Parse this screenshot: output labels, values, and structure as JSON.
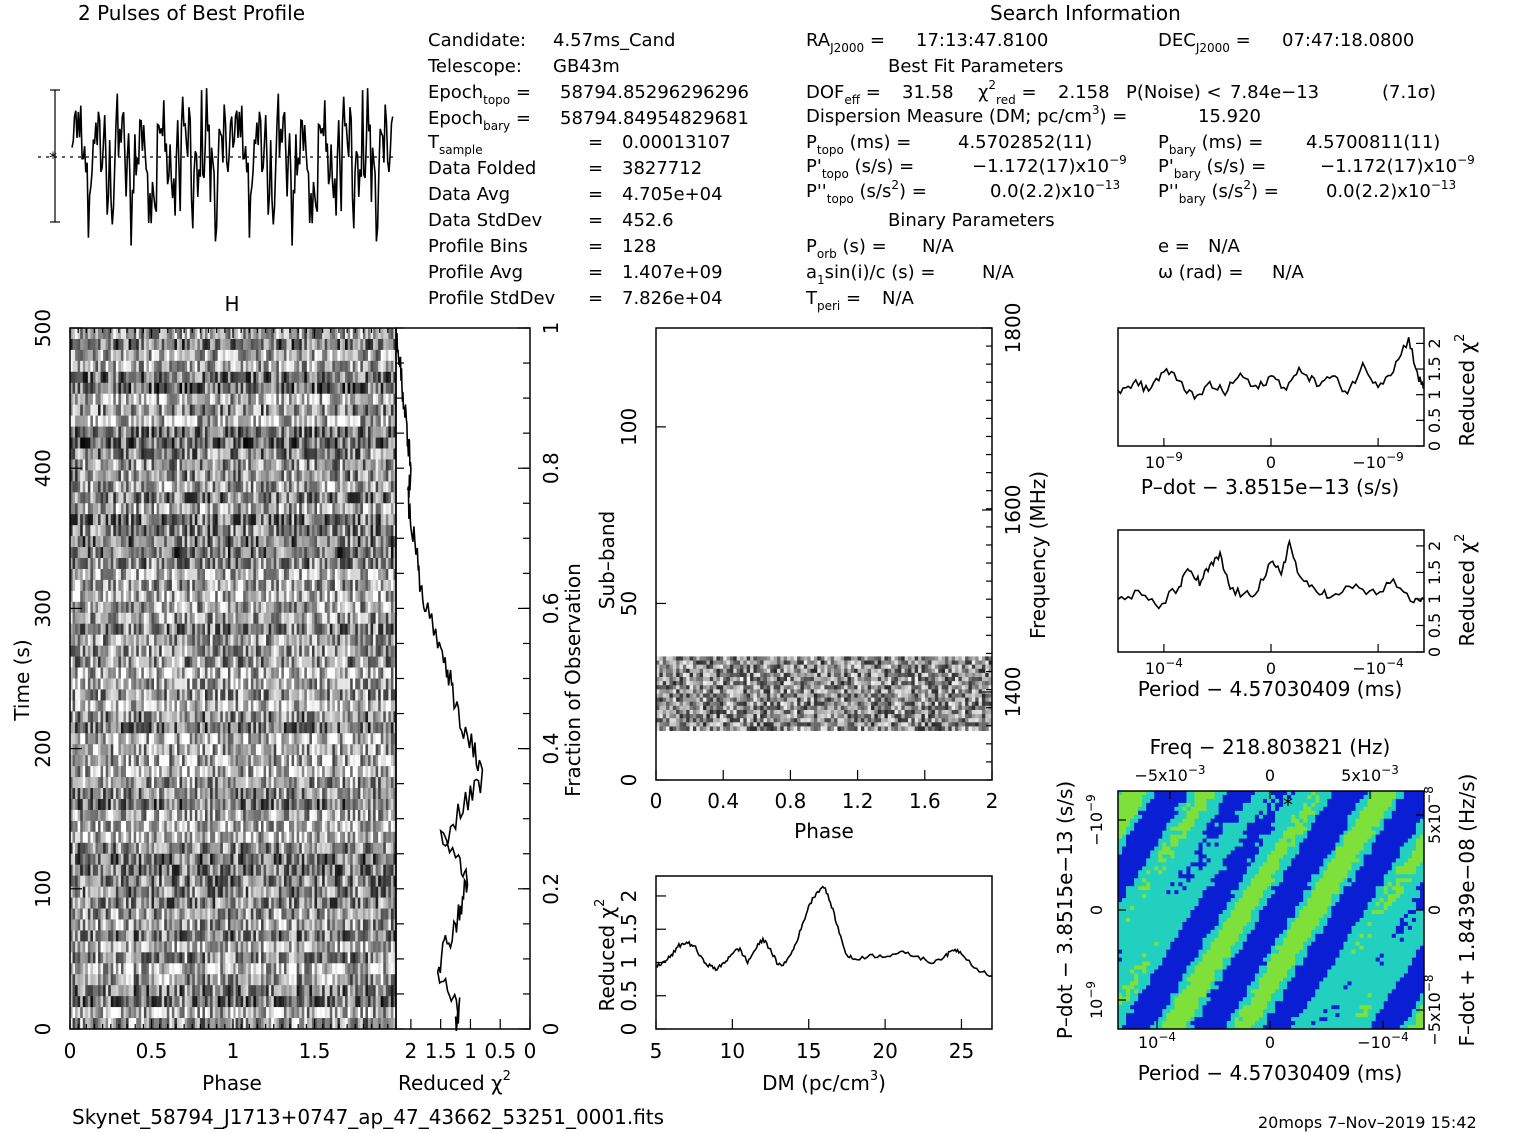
{
  "header": {
    "profile_title": "2 Pulses of Best Profile",
    "search_title": "Search Information",
    "best_fit_title": "Best Fit Parameters",
    "binary_title": "Binary Parameters"
  },
  "candidate_info": {
    "candidate": "4.57ms_Cand",
    "telescope": "GB43m",
    "epoch_topo": "58794.85296296296",
    "epoch_bary": "58794.84954829681",
    "t_sample": "0.00013107",
    "data_folded": "3827712",
    "data_avg": "4.705e+04",
    "data_stddev": "452.6",
    "profile_bins": "128",
    "profile_avg": "1.407e+09",
    "profile_stddev": "7.826e+04"
  },
  "search_info": {
    "ra": "17:13:47.8100",
    "dec": "07:47:18.0800",
    "dof_eff": "31.58",
    "chi2_red": "2.158",
    "p_noise": "7.84e−13",
    "sigma": "(7.1σ)",
    "dm": "15.920",
    "p_topo": "4.5702852(11)",
    "p_bary": "4.5700811(11)",
    "pd_topo_mant": "−1.172(17)x10",
    "pd_topo_exp": "−9",
    "pd_bary_mant": "−1.172(17)x10",
    "pd_bary_exp": "−9",
    "pdd_topo_mant": "0.0(2.2)x10",
    "pdd_topo_exp": "−13",
    "pdd_bary_mant": "0.0(2.2)x10",
    "pdd_bary_exp": "−13",
    "p_orb": "N/A",
    "e": "N/A",
    "asini": "N/A",
    "omega": "N/A",
    "t_peri": "N/A"
  },
  "footer": {
    "filename": "Skynet_58794_J1713+0747_ap_47_43662_53251_0001.fits",
    "user_date": "20mops  7–Nov–2019 15:42"
  },
  "colors": {
    "line": "#000000",
    "heatmap_low": "#0a1fd4",
    "heatmap_mid": "#22d0c0",
    "heatmap_high": "#7fe03a"
  },
  "chart_data": [
    {
      "id": "profile",
      "type": "line",
      "title": "2 Pulses of Best Profile",
      "x_range": [
        0,
        2
      ],
      "pulses": 2,
      "bins_per_pulse": 128,
      "error_bar": true,
      "mean_line": "dotted"
    },
    {
      "id": "time_phase",
      "type": "heatmap",
      "xlabel": "Phase",
      "ylabel": "Time (s)",
      "xlim": [
        0,
        2
      ],
      "ylim": [
        0,
        500
      ],
      "x_ticks": [
        "0",
        "0.5",
        "1",
        "1.5"
      ],
      "y_ticks": [
        "0",
        "100",
        "200",
        "300",
        "400",
        "500"
      ],
      "colormap": "grayscale"
    },
    {
      "id": "time_chi2",
      "type": "line",
      "xlabel": "Reduced χ",
      "xlabel_sup": "2",
      "x_ticks": [
        "2",
        "1.5",
        "1",
        "0.5",
        "0"
      ],
      "y2label": "Fraction of Observation",
      "y2_ticks": [
        "0",
        "0.2",
        "0.4",
        "0.6",
        "0.8",
        "1"
      ],
      "values_vs_fraction": [
        [
          0.0,
          1.25
        ],
        [
          0.03,
          1.18
        ],
        [
          0.06,
          1.35
        ],
        [
          0.09,
          1.55
        ],
        [
          0.12,
          1.42
        ],
        [
          0.15,
          1.25
        ],
        [
          0.18,
          1.15
        ],
        [
          0.21,
          1.05
        ],
        [
          0.24,
          1.2
        ],
        [
          0.27,
          1.5
        ],
        [
          0.3,
          1.25
        ],
        [
          0.33,
          1.0
        ],
        [
          0.36,
          0.8
        ],
        [
          0.4,
          0.95
        ],
        [
          0.44,
          1.15
        ],
        [
          0.48,
          1.3
        ],
        [
          0.52,
          1.4
        ],
        [
          0.56,
          1.55
        ],
        [
          0.6,
          1.75
        ],
        [
          0.64,
          1.85
        ],
        [
          0.68,
          1.9
        ],
        [
          0.72,
          2.0
        ],
        [
          0.76,
          2.05
        ],
        [
          0.8,
          2.0
        ],
        [
          0.84,
          2.05
        ],
        [
          0.88,
          2.1
        ],
        [
          0.92,
          2.15
        ],
        [
          0.96,
          2.2
        ],
        [
          1.0,
          2.25
        ]
      ]
    },
    {
      "id": "subband_phase",
      "type": "heatmap",
      "xlabel": "Phase",
      "ylabel": "Sub–band",
      "y2label": "Frequency (MHz)",
      "xlim": [
        0,
        2
      ],
      "ylim": [
        0,
        128
      ],
      "x_ticks": [
        "0",
        "0.4",
        "0.8",
        "1.2",
        "1.6",
        "2"
      ],
      "y_ticks": [
        "0",
        "50",
        "100"
      ],
      "y2_ticks": [
        "1400",
        "1600",
        "1800"
      ],
      "band_subbands": [
        14,
        35
      ],
      "colormap": "grayscale"
    },
    {
      "id": "dm_chi2",
      "type": "line",
      "xlabel": "DM (pc/cm",
      "xlabel_sup": "3",
      "xlabel_end": ")",
      "ylabel": "Reduced χ",
      "ylabel_sup": "2",
      "xlim": [
        5,
        27
      ],
      "ylim": [
        0,
        2.3
      ],
      "x_ticks": [
        "5",
        "10",
        "15",
        "20",
        "25"
      ],
      "y_ticks": [
        "0",
        "0.5",
        "1",
        "1.5",
        "2"
      ],
      "points": [
        [
          5,
          0.95
        ],
        [
          5.5,
          1.0
        ],
        [
          6,
          1.1
        ],
        [
          6.5,
          1.25
        ],
        [
          7,
          1.3
        ],
        [
          7.5,
          1.25
        ],
        [
          8,
          1.05
        ],
        [
          8.5,
          0.95
        ],
        [
          9,
          0.9
        ],
        [
          9.5,
          1.0
        ],
        [
          10,
          1.15
        ],
        [
          10.5,
          1.2
        ],
        [
          11,
          1.0
        ],
        [
          11.5,
          1.2
        ],
        [
          12,
          1.35
        ],
        [
          12.5,
          1.2
        ],
        [
          13,
          0.95
        ],
        [
          13.5,
          1.0
        ],
        [
          14,
          1.2
        ],
        [
          14.5,
          1.5
        ],
        [
          15,
          1.85
        ],
        [
          15.5,
          2.05
        ],
        [
          16,
          2.15
        ],
        [
          16.5,
          1.85
        ],
        [
          17,
          1.45
        ],
        [
          17.5,
          1.1
        ],
        [
          18,
          1.05
        ],
        [
          19,
          1.1
        ],
        [
          20,
          1.1
        ],
        [
          21,
          1.15
        ],
        [
          22,
          1.1
        ],
        [
          23,
          1.0
        ],
        [
          24,
          1.1
        ],
        [
          24.5,
          1.2
        ],
        [
          25,
          1.15
        ],
        [
          26,
          0.9
        ],
        [
          27,
          0.8
        ]
      ]
    },
    {
      "id": "pdot_chi2",
      "type": "line",
      "xlabel": "P–dot − 3.8515e−13 (s/s)",
      "ylabel": "Reduced χ",
      "ylabel_sup": "2",
      "x_ticks": [
        "10",
        "0",
        "−10"
      ],
      "x_tick_exp": "−9",
      "y_ticks": [
        "0",
        "0.5",
        "1",
        "1.5",
        "2"
      ],
      "ylim": [
        0,
        2.3
      ],
      "xlim": [
        -1.5,
        1.5
      ],
      "points": [
        [
          -1.5,
          1.0
        ],
        [
          -1.35,
          1.25
        ],
        [
          -1.2,
          1.1
        ],
        [
          -1.05,
          1.45
        ],
        [
          -0.9,
          1.3
        ],
        [
          -0.75,
          0.9
        ],
        [
          -0.6,
          1.2
        ],
        [
          -0.45,
          1.05
        ],
        [
          -0.3,
          1.4
        ],
        [
          -0.15,
          1.1
        ],
        [
          0,
          1.35
        ],
        [
          0.15,
          1.15
        ],
        [
          0.3,
          1.5
        ],
        [
          0.45,
          1.2
        ],
        [
          0.6,
          1.35
        ],
        [
          0.75,
          1.05
        ],
        [
          0.9,
          1.55
        ],
        [
          1.05,
          1.2
        ],
        [
          1.2,
          1.5
        ],
        [
          1.35,
          2.1
        ],
        [
          1.45,
          1.3
        ],
        [
          1.5,
          1.15
        ]
      ]
    },
    {
      "id": "period_chi2",
      "type": "line",
      "xlabel": "Period − 4.57030409 (ms)",
      "ylabel": "Reduced χ",
      "ylabel_sup": "2",
      "x_ticks": [
        "10",
        "0",
        "−10"
      ],
      "x_tick_exp": "−4",
      "y_ticks": [
        "0",
        "0.5",
        "1",
        "1.5",
        "2"
      ],
      "ylim": [
        0,
        2.3
      ],
      "xlim": [
        -1.5,
        1.5
      ],
      "points": [
        [
          -1.5,
          1.0
        ],
        [
          -1.3,
          1.1
        ],
        [
          -1.1,
          0.85
        ],
        [
          -0.9,
          1.25
        ],
        [
          -0.8,
          1.55
        ],
        [
          -0.7,
          1.3
        ],
        [
          -0.6,
          1.6
        ],
        [
          -0.5,
          1.8
        ],
        [
          -0.4,
          1.2
        ],
        [
          -0.25,
          1.05
        ],
        [
          -0.15,
          1.15
        ],
        [
          0,
          1.65
        ],
        [
          0.1,
          1.5
        ],
        [
          0.18,
          2.05
        ],
        [
          0.3,
          1.3
        ],
        [
          0.45,
          1.2
        ],
        [
          0.6,
          1.0
        ],
        [
          0.8,
          1.25
        ],
        [
          1.0,
          1.1
        ],
        [
          1.2,
          1.3
        ],
        [
          1.4,
          0.95
        ],
        [
          1.5,
          1.0
        ]
      ]
    },
    {
      "id": "period_pdot_plane",
      "type": "heatmap",
      "title": "Freq − 218.803821 (Hz)",
      "xlabel": "Period − 4.57030409 (ms)",
      "ylabel": "P–dot − 3.8515e−13 (s/s)",
      "y2label": "F–dot + 1.8439e−08 (Hz/s)",
      "x_ticks": [
        "10",
        "0",
        "−10"
      ],
      "x_tick_exp": "−4",
      "top_ticks": [
        "−5x10",
        "0",
        "5x10"
      ],
      "top_tick_exp": "−3",
      "y_ticks": [
        "10",
        "0",
        "−10"
      ],
      "y_tick_exp": "−9",
      "y2_ticks": [
        "−5x10",
        "0",
        "5x10"
      ],
      "y2_tick_exp": "−8",
      "best_marker": "*",
      "colormap": "rainbow"
    }
  ]
}
